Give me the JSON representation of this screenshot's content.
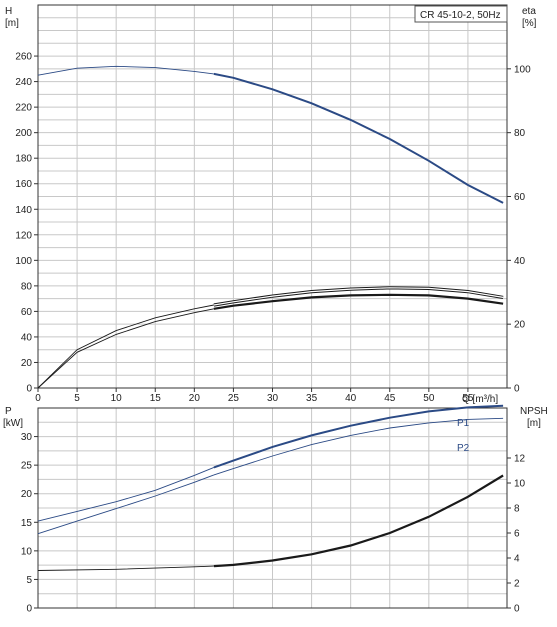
{
  "chart_data": [
    {
      "type": "line",
      "title": "CR 45-10-2, 50Hz",
      "xlabel": "Q [m³/h]",
      "xlim": [
        0,
        60
      ],
      "x_ticks": [
        "0",
        "5",
        "10",
        "15",
        "20",
        "25",
        "30",
        "35",
        "40",
        "45",
        "50",
        "55"
      ],
      "grid": true,
      "left_axis": {
        "label_line1": "H",
        "label_line2": "[m]",
        "ylim": [
          0,
          300
        ],
        "ticks": [
          "0",
          "20",
          "40",
          "60",
          "80",
          "100",
          "120",
          "140",
          "160",
          "180",
          "200",
          "220",
          "240",
          "260"
        ]
      },
      "right_axis": {
        "label_line1": "eta",
        "label_line2": "[%]",
        "ylim": [
          0,
          100
        ],
        "ticks": [
          "0",
          "20",
          "40",
          "60",
          "80",
          "100"
        ]
      },
      "series": [
        {
          "axis": "left",
          "color": "#2b4a85",
          "thin_x": [
            0,
            5,
            10,
            15,
            20,
            22.5
          ],
          "thin_y": [
            245,
            250.5,
            252,
            251,
            248,
            246
          ],
          "bold_x": [
            22.5,
            25,
            30,
            35,
            40,
            45,
            50,
            55,
            59.5
          ],
          "bold_y": [
            246,
            243,
            234,
            223,
            210,
            195,
            178,
            159,
            145
          ]
        },
        {
          "axis": "left",
          "color": "#1a1a1a",
          "thin_x": [
            0,
            5,
            10,
            15,
            20,
            22.5
          ],
          "thin_y": [
            0,
            28,
            42,
            52,
            59,
            62
          ],
          "bold_x": [
            22.5,
            25,
            30,
            35,
            40,
            45,
            50,
            55,
            59.5
          ],
          "bold_y": [
            62,
            64.5,
            68,
            71,
            72.5,
            73,
            72.5,
            70,
            66
          ],
          "bold_width": 2.2
        },
        {
          "axis": "left",
          "color": "#1a1a1a",
          "thin_x": [
            0,
            5,
            10,
            15,
            20,
            22.5
          ],
          "thin_y": [
            0,
            30,
            45,
            55,
            62,
            65
          ],
          "bold_x": [
            22.5,
            25,
            30,
            35,
            40,
            45,
            50,
            55,
            59.5
          ],
          "bold_y": [
            65,
            67.5,
            72,
            75.5,
            77.5,
            78.5,
            78,
            75.5,
            71
          ],
          "bold_width": 1.6,
          "double": true
        }
      ]
    },
    {
      "type": "line",
      "xlim": [
        0,
        60
      ],
      "grid": true,
      "left_axis": {
        "label_line1": "P",
        "label_line2": "[kW]",
        "ylim": [
          0,
          35
        ],
        "ticks": [
          "0",
          "5",
          "10",
          "15",
          "20",
          "25",
          "30"
        ]
      },
      "right_axis": {
        "label_line1": "NPSH",
        "label_line2": "[m]",
        "ylim": [
          0,
          14
        ],
        "ticks": [
          "0",
          "2",
          "4",
          "6",
          "8",
          "10",
          "12"
        ]
      },
      "series": [
        {
          "name": "P1",
          "axis": "left",
          "color": "#2b4a85",
          "thin_x": [
            0,
            5,
            10,
            15,
            20,
            22.5
          ],
          "thin_y": [
            15.2,
            16.9,
            18.6,
            20.6,
            23.2,
            24.6
          ],
          "bold_x": [
            22.5,
            25,
            30,
            35,
            40,
            45,
            50,
            55,
            59.5
          ],
          "bold_y": [
            24.6,
            25.8,
            28.2,
            30.2,
            31.9,
            33.3,
            34.4,
            35.1,
            35.4
          ]
        },
        {
          "name": "P2",
          "axis": "left",
          "color": "#2b4a85",
          "thin_x": [
            0,
            5,
            10,
            15,
            20,
            22.5
          ],
          "thin_y": [
            13.0,
            15.2,
            17.4,
            19.6,
            22.0,
            23.3
          ],
          "bold_x": [
            22.5,
            25,
            30,
            35,
            40,
            45,
            50,
            55,
            59.5
          ],
          "bold_y": [
            23.3,
            24.4,
            26.6,
            28.6,
            30.2,
            31.5,
            32.4,
            33.0,
            33.2
          ],
          "thin_only": true
        },
        {
          "axis": "right",
          "color": "#1a1a1a",
          "thin_x": [
            0,
            10,
            20,
            22.5
          ],
          "thin_y": [
            3.0,
            3.1,
            3.3,
            3.35
          ],
          "bold_x": [
            22.5,
            25,
            30,
            35,
            40,
            45,
            50,
            55,
            59.5
          ],
          "bold_y": [
            3.35,
            3.45,
            3.8,
            4.3,
            5.0,
            6.0,
            7.3,
            8.9,
            10.6
          ],
          "bold_width": 2.2
        }
      ]
    }
  ]
}
